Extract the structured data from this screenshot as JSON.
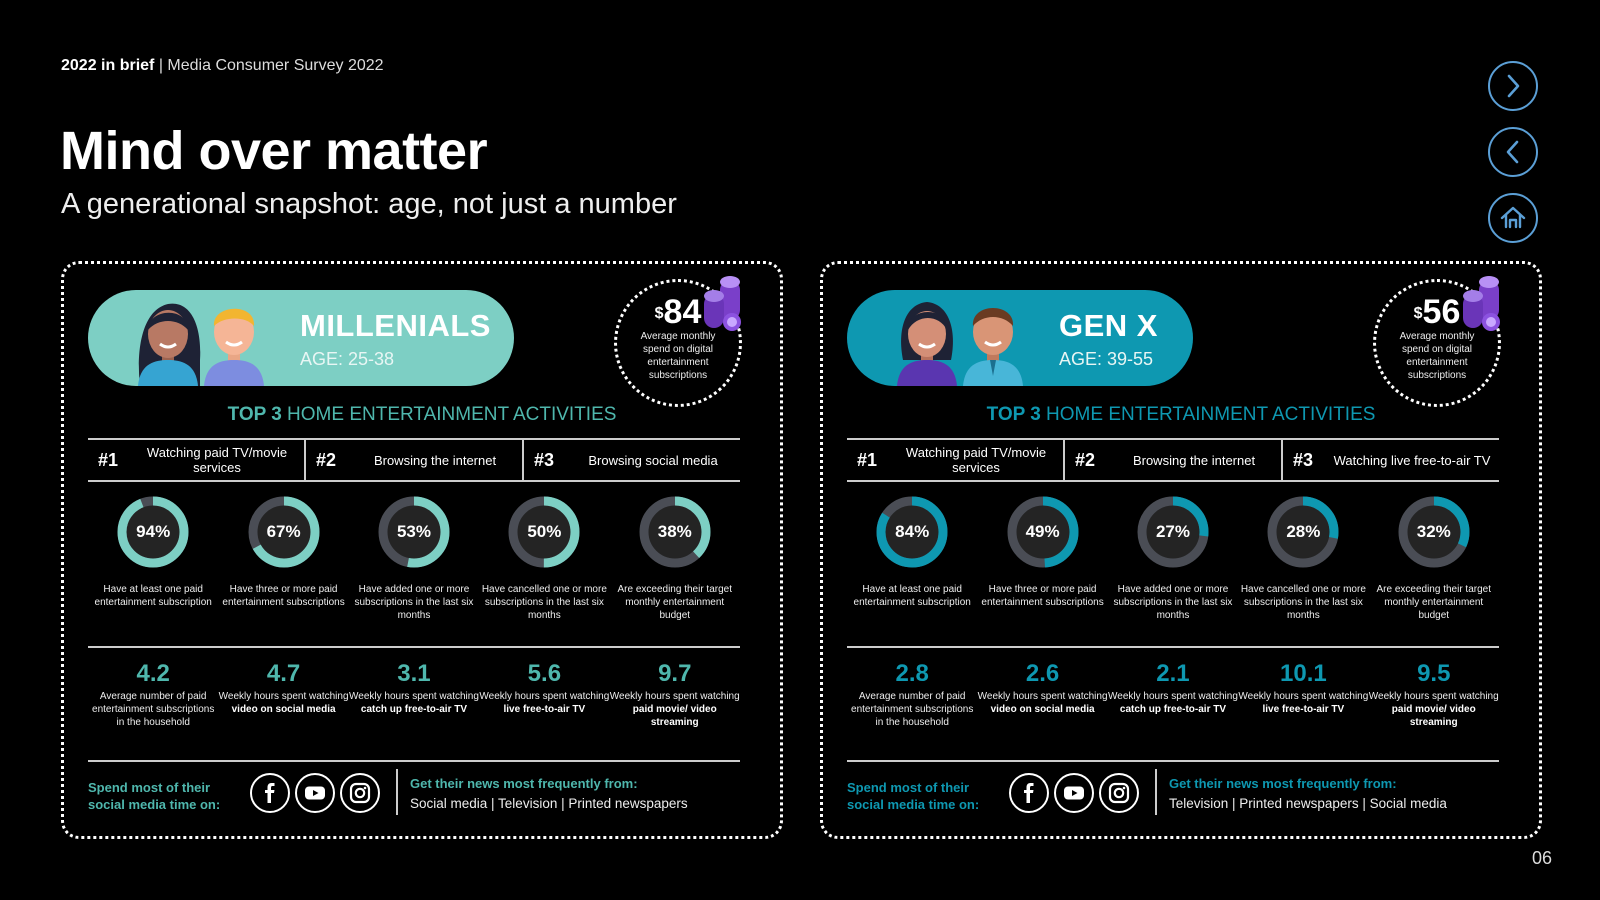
{
  "header": {
    "bold": "2022 in brief",
    "sep": " | ",
    "rest": "Media Consumer Survey 2022",
    "title": "Mind over matter",
    "subtitle": "A generational snapshot: age, not just a number",
    "page_number": "06"
  },
  "nav": {
    "next_icon": "chevron-right-icon",
    "prev_icon": "chevron-left-icon",
    "home_icon": "home-icon"
  },
  "colors": {
    "millenials_accent": "#7dcfc4",
    "genx_accent": "#0e98b1",
    "track": "#4a4d55",
    "teal_text": "#4fb7ad"
  },
  "panels": [
    {
      "name": "MILLENIALS",
      "age": "AGE: 25-38",
      "spend_currency": "$",
      "spend_amount": "84",
      "spend_label": "Average monthly spend on digital entertainment subscriptions",
      "top3_bold": "TOP 3",
      "top3_rest": " HOME ENTERTAINMENT ACTIVITIES",
      "ranks": [
        {
          "num": "#1",
          "label": "Watching paid TV/movie services"
        },
        {
          "num": "#2",
          "label": "Browsing the internet"
        },
        {
          "num": "#3",
          "label": "Browsing social media"
        }
      ],
      "donuts": [
        {
          "pct": "94%",
          "value": 94,
          "desc": "Have at least one paid entertainment subscription"
        },
        {
          "pct": "67%",
          "value": 67,
          "desc": "Have three or more paid entertainment subscriptions"
        },
        {
          "pct": "53%",
          "value": 53,
          "desc": "Have added one or more subscriptions in the last six months"
        },
        {
          "pct": "50%",
          "value": 50,
          "desc": "Have cancelled one or more subscriptions in the last six months"
        },
        {
          "pct": "38%",
          "value": 38,
          "desc": "Are exceeding their target monthly entertainment budget"
        }
      ],
      "stats": [
        {
          "value": "4.2",
          "desc": "Average number of paid entertainment subscriptions in the household",
          "desc_bold": ""
        },
        {
          "value": "4.7",
          "desc": "Weekly hours spent watching ",
          "desc_bold": "video on social media"
        },
        {
          "value": "3.1",
          "desc": "Weekly hours spent watching ",
          "desc_bold": "catch up free-to-air TV"
        },
        {
          "value": "5.6",
          "desc": "Weekly hours spent watching ",
          "desc_bold": "live free-to-air TV"
        },
        {
          "value": "9.7",
          "desc": "Weekly hours spent watching ",
          "desc_bold": "paid movie/ video streaming"
        }
      ],
      "social_label": "Spend most of their social media time on:",
      "news_label": "Get their news most frequently from:",
      "news_sources": "Social media | Television  | Printed newspapers"
    },
    {
      "name": "GEN X",
      "age": "AGE: 39-55",
      "spend_currency": "$",
      "spend_amount": "56",
      "spend_label": "Average monthly spend on digital entertainment subscriptions",
      "top3_bold": "TOP 3",
      "top3_rest": " HOME ENTERTAINMENT ACTIVITIES",
      "ranks": [
        {
          "num": "#1",
          "label": "Watching paid TV/movie services"
        },
        {
          "num": "#2",
          "label": "Browsing the internet"
        },
        {
          "num": "#3",
          "label": "Watching live free-to-air TV"
        }
      ],
      "donuts": [
        {
          "pct": "84%",
          "value": 84,
          "desc": "Have at least one paid entertainment subscription"
        },
        {
          "pct": "49%",
          "value": 49,
          "desc": "Have three or more paid entertainment subscriptions"
        },
        {
          "pct": "27%",
          "value": 27,
          "desc": "Have added one or more subscriptions in the last six months"
        },
        {
          "pct": "28%",
          "value": 28,
          "desc": "Have cancelled one or more subscriptions in the last six months"
        },
        {
          "pct": "32%",
          "value": 32,
          "desc": "Are exceeding their target monthly entertainment budget"
        }
      ],
      "stats": [
        {
          "value": "2.8",
          "desc": "Average number of paid entertainment subscriptions in the household",
          "desc_bold": ""
        },
        {
          "value": "2.6",
          "desc": "Weekly hours spent watching ",
          "desc_bold": "video on social media"
        },
        {
          "value": "2.1",
          "desc": "Weekly hours spent watching ",
          "desc_bold": "catch up free-to-air TV"
        },
        {
          "value": "10.1",
          "desc": "Weekly hours spent watching ",
          "desc_bold": "live free-to-air TV"
        },
        {
          "value": "9.5",
          "desc": "Weekly hours spent watching ",
          "desc_bold": "paid movie/ video streaming"
        }
      ],
      "social_label": "Spend most of their social media time on:",
      "news_label": "Get their news most frequently from:",
      "news_sources": "Television | Printed newspapers | Social media"
    }
  ],
  "social_icons": [
    "facebook-icon",
    "youtube-icon",
    "instagram-icon"
  ]
}
